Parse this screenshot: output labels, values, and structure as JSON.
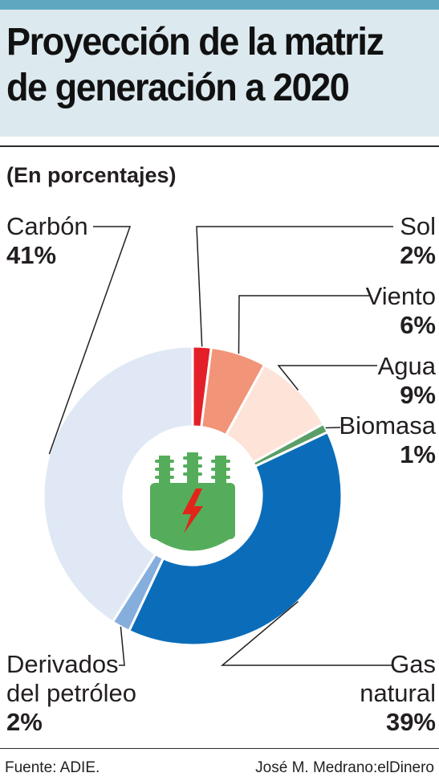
{
  "header": {
    "title_line1": "Proyección de la matriz",
    "title_line2": "de generación a 2020",
    "subtitle": "(En porcentajes)"
  },
  "colors": {
    "top_bar": "#5fa7c0",
    "title_band": "#dce9ef",
    "icon_green": "#55ad5b",
    "icon_bolt": "#e1251b"
  },
  "center_icon": "power-transformer-icon",
  "chart_data": {
    "type": "pie",
    "style": "donut",
    "unit": "%",
    "slices": [
      {
        "label": "Sol",
        "value": 2,
        "display": "2%",
        "color": "#e3202a"
      },
      {
        "label": "Viento",
        "value": 6,
        "display": "6%",
        "color": "#f29478"
      },
      {
        "label": "Agua",
        "value": 9,
        "display": "9%",
        "color": "#fde3d8"
      },
      {
        "label": "Biomasa",
        "value": 1,
        "display": "1%",
        "color": "#5a9e68"
      },
      {
        "label": "Gas natural",
        "label_line1": "Gas",
        "label_line2": "natural",
        "value": 39,
        "display": "39%",
        "color": "#0b6dba"
      },
      {
        "label": "Derivados del petróleo",
        "label_line1": "Derivados",
        "label_line2": "del petróleo",
        "value": 2,
        "display": "2%",
        "color": "#86aedd"
      },
      {
        "label": "Carbón",
        "value": 41,
        "display": "41%",
        "color": "#dfe8f4"
      }
    ]
  },
  "footer": {
    "source": "Fuente: ADIE.",
    "credit": "José M. Medrano:elDinero"
  }
}
